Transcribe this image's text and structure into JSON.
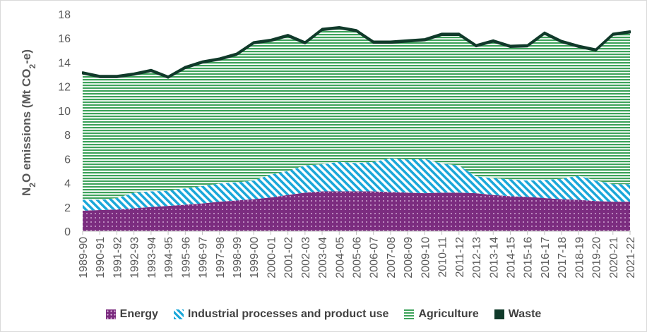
{
  "chart_data": {
    "type": "area",
    "stacked": true,
    "title": "",
    "ylabel_parts": [
      "N",
      "2",
      "O emissions (Mt CO",
      "2",
      "-e)"
    ],
    "ylim": [
      0,
      18
    ],
    "yticks": [
      0,
      2,
      4,
      6,
      8,
      10,
      12,
      14,
      16,
      18
    ],
    "grid": false,
    "legend_position": "bottom",
    "categories": [
      "1989-90",
      "1990-91",
      "1991-92",
      "1992-93",
      "1993-94",
      "1994-95",
      "1995-96",
      "1996-97",
      "1997-98",
      "1998-99",
      "1999-00",
      "2000-01",
      "2001-02",
      "2002-03",
      "2003-04",
      "2004-05",
      "2005-06",
      "2006-07",
      "2007-08",
      "2008-09",
      "2009-10",
      "2010-11",
      "2011-12",
      "2012-13",
      "2013-14",
      "2014-15",
      "2015-16",
      "2016-17",
      "2017-18",
      "2018-19",
      "2019-20",
      "2020-21",
      "2021-22"
    ],
    "series": [
      {
        "name": "Energy",
        "pattern": "dots",
        "color": "#7b2c7f",
        "values": [
          1.7,
          1.75,
          1.8,
          1.9,
          2.0,
          2.1,
          2.2,
          2.3,
          2.45,
          2.55,
          2.65,
          2.8,
          3.0,
          3.2,
          3.3,
          3.3,
          3.3,
          3.3,
          3.25,
          3.2,
          3.15,
          3.2,
          3.2,
          3.15,
          3.0,
          2.9,
          2.85,
          2.75,
          2.65,
          2.6,
          2.5,
          2.45,
          2.45
        ]
      },
      {
        "name": "Industrial processes and product use",
        "pattern": "diagonal",
        "color": "#1aa7d9",
        "values": [
          0.9,
          0.85,
          0.95,
          1.3,
          1.3,
          1.25,
          1.35,
          1.45,
          1.5,
          1.5,
          1.55,
          1.9,
          2.0,
          2.25,
          2.25,
          2.45,
          2.35,
          2.45,
          2.8,
          2.75,
          2.85,
          2.4,
          2.25,
          1.4,
          1.4,
          1.4,
          1.35,
          1.5,
          1.7,
          2.0,
          1.7,
          1.45,
          1.45
        ]
      },
      {
        "name": "Agriculture",
        "pattern": "horizontal",
        "color": "#3ea35b",
        "values": [
          10.45,
          10.15,
          10.0,
          9.75,
          9.95,
          9.35,
          9.95,
          10.2,
          10.25,
          10.55,
          11.35,
          11.05,
          11.15,
          10.1,
          11.1,
          11.05,
          10.9,
          9.85,
          9.55,
          9.75,
          9.8,
          10.65,
          10.8,
          10.75,
          11.3,
          10.95,
          11.1,
          12.1,
          11.3,
          10.65,
          10.75,
          12.35,
          12.55
        ]
      },
      {
        "name": "Waste",
        "pattern": "solid",
        "color": "#103a2a",
        "values": [
          0.15,
          0.15,
          0.15,
          0.15,
          0.15,
          0.15,
          0.15,
          0.15,
          0.15,
          0.15,
          0.15,
          0.15,
          0.15,
          0.15,
          0.15,
          0.15,
          0.15,
          0.15,
          0.15,
          0.15,
          0.15,
          0.15,
          0.15,
          0.15,
          0.15,
          0.15,
          0.15,
          0.15,
          0.15,
          0.15,
          0.15,
          0.15,
          0.15
        ]
      }
    ]
  }
}
